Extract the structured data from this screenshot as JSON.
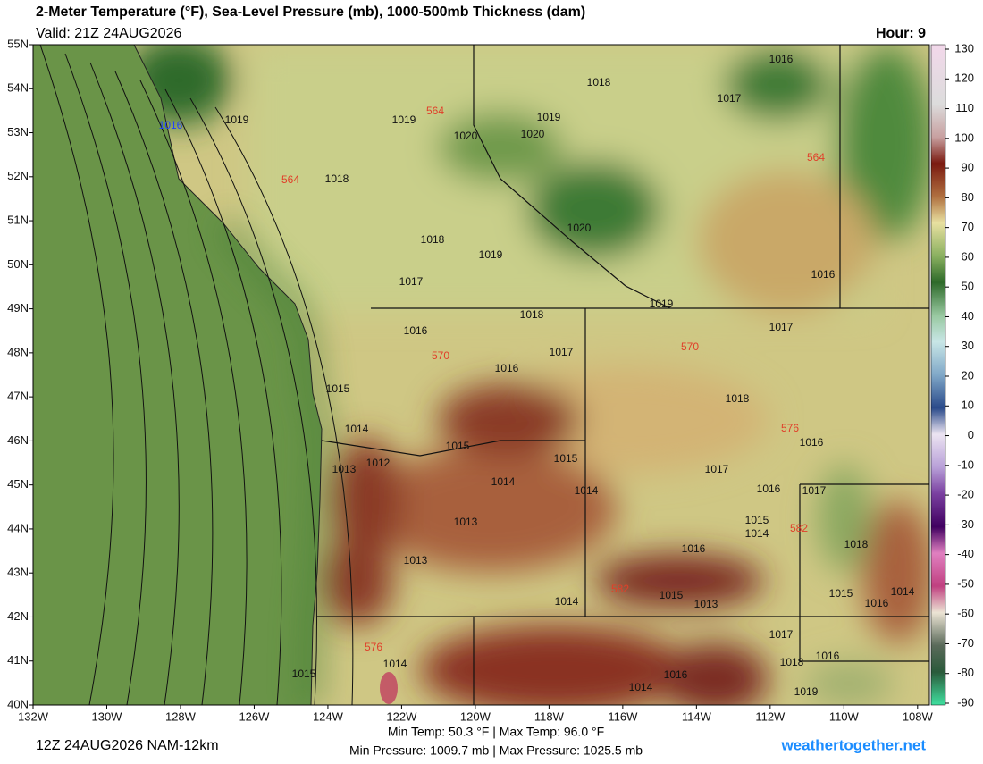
{
  "header": {
    "title": "2-Meter Temperature (°F), Sea-Level Pressure (mb), 1000-500mb Thickness (dam)",
    "valid": "Valid: 21Z 24AUG2026",
    "hour": "Hour: 9"
  },
  "map": {
    "lonlim": [
      -132,
      -107.68
    ],
    "latlim": [
      40,
      55
    ],
    "lon_ticks": [
      {
        "value": -132,
        "label": "132W"
      },
      {
        "value": -130,
        "label": "130W"
      },
      {
        "value": -128,
        "label": "128W"
      },
      {
        "value": -126,
        "label": "126W"
      },
      {
        "value": -124,
        "label": "124W"
      },
      {
        "value": -122,
        "label": "122W"
      },
      {
        "value": -120,
        "label": "120W"
      },
      {
        "value": -118,
        "label": "118W"
      },
      {
        "value": -116,
        "label": "116W"
      },
      {
        "value": -114,
        "label": "114W"
      },
      {
        "value": -112,
        "label": "112W"
      },
      {
        "value": -110,
        "label": "110W"
      },
      {
        "value": -108,
        "label": "108W"
      }
    ],
    "lat_ticks": [
      {
        "value": 55,
        "label": "55N"
      },
      {
        "value": 54,
        "label": "54N"
      },
      {
        "value": 53,
        "label": "53N"
      },
      {
        "value": 52,
        "label": "52N"
      },
      {
        "value": 51,
        "label": "51N"
      },
      {
        "value": 50,
        "label": "50N"
      },
      {
        "value": 49,
        "label": "49N"
      },
      {
        "value": 48,
        "label": "48N"
      },
      {
        "value": 47,
        "label": "47N"
      },
      {
        "value": 46,
        "label": "46N"
      },
      {
        "value": 45,
        "label": "45N"
      },
      {
        "value": 44,
        "label": "44N"
      },
      {
        "value": 43,
        "label": "43N"
      },
      {
        "value": 42,
        "label": "42N"
      },
      {
        "value": 41,
        "label": "41N"
      },
      {
        "value": 40,
        "label": "40N"
      }
    ],
    "colorbar": {
      "lim": [
        -90,
        130
      ],
      "ticks": [
        130,
        120,
        110,
        100,
        90,
        80,
        70,
        60,
        50,
        40,
        30,
        20,
        10,
        0,
        -10,
        -20,
        -30,
        -40,
        -50,
        -60,
        -70,
        -80,
        -90
      ]
    },
    "isobar_labels": [
      1019,
      1019,
      1019,
      1018,
      1016,
      1017,
      1020,
      1020,
      1018,
      1020,
      1018,
      1019,
      1017,
      1016,
      1019,
      1018,
      1017,
      1016,
      1017,
      1016,
      1018,
      1015,
      1014,
      1015,
      1013,
      1012,
      1015,
      1016,
      1017,
      1014,
      1014,
      1016,
      1017,
      1013,
      1015,
      1014,
      1016,
      1013,
      1018,
      1014,
      1015,
      1013,
      1015,
      1016,
      1014,
      1017,
      1016,
      1018,
      1014,
      1015,
      1016,
      1014,
      1019
    ],
    "center_label": 1016,
    "thickness_labels": [
      564,
      564,
      564,
      570,
      570,
      576,
      576,
      582,
      582
    ]
  },
  "footer": {
    "run": "12Z 24AUG2026 NAM-12km",
    "temps": "Min Temp:  50.3 °F | Max Temp:  96.0 °F",
    "pressures": "Min Pressure: 1009.7 mb | Max Pressure: 1025.5 mb",
    "site": "weathertogether.net"
  }
}
